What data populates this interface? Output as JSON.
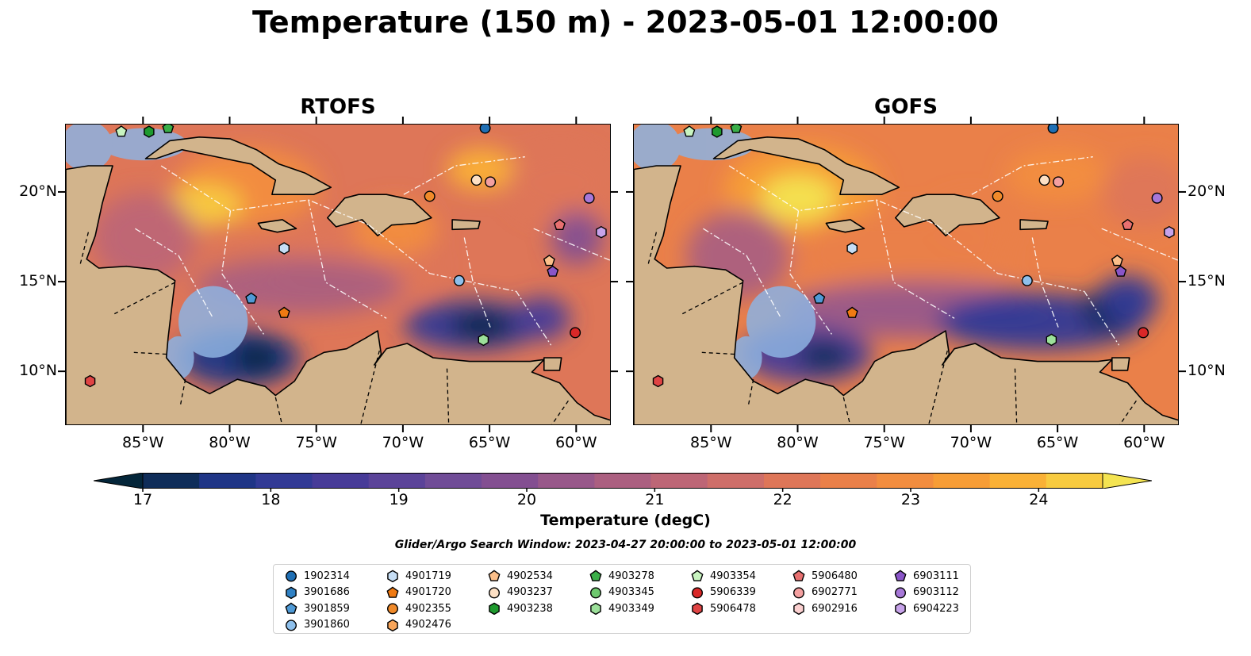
{
  "title": "Temperature (150 m) - 2023-05-01 12:00:00",
  "panels": [
    {
      "title": "RTOFS"
    },
    {
      "title": "GOFS"
    }
  ],
  "lon_ticks": [
    "85°W",
    "80°W",
    "75°W",
    "70°W",
    "65°W",
    "60°W"
  ],
  "lat_ticks": [
    "20°N",
    "15°N",
    "10°N"
  ],
  "map_extent": {
    "lon": [
      -89.5,
      -58.0
    ],
    "lat": [
      7.0,
      23.8
    ]
  },
  "colorbar": {
    "label": "Temperature (degC)",
    "ticks": [
      "17",
      "18",
      "19",
      "20",
      "21",
      "22",
      "23",
      "24"
    ],
    "min": 17,
    "max": 24.5,
    "step": 0.5,
    "colors": [
      "#04263a",
      "#0f2d59",
      "#1f3586",
      "#323a95",
      "#473b98",
      "#5b4399",
      "#704c97",
      "#834f91",
      "#98588a",
      "#ab5f80",
      "#bd6676",
      "#ce6e69",
      "#de7658",
      "#ea8049",
      "#f28d3f",
      "#f79d36",
      "#fab136",
      "#f8cb40",
      "#f4e452"
    ]
  },
  "search_window": "Glider/Argo Search Window: 2023-04-27 20:00:00 to 2023-05-01 12:00:00",
  "legend": [
    {
      "id": "1902314",
      "marker": "circle",
      "color": "#1f6fb4"
    },
    {
      "id": "3901686",
      "marker": "hexagon",
      "color": "#2f81c4"
    },
    {
      "id": "3901859",
      "marker": "pentagon",
      "color": "#4f9ad6"
    },
    {
      "id": "3901860",
      "marker": "circle",
      "color": "#8ec0ec"
    },
    {
      "id": "4901719",
      "marker": "hexagon",
      "color": "#c6def5"
    },
    {
      "id": "4901720",
      "marker": "pentagon",
      "color": "#f07a12"
    },
    {
      "id": "4902355",
      "marker": "circle",
      "color": "#f08a2a"
    },
    {
      "id": "4902476",
      "marker": "hexagon",
      "color": "#f8a55a"
    },
    {
      "id": "4902534",
      "marker": "pentagon",
      "color": "#fbbf8a"
    },
    {
      "id": "4903237",
      "marker": "circle",
      "color": "#fde0c4"
    },
    {
      "id": "4903238",
      "marker": "hexagon",
      "color": "#1e9a2e"
    },
    {
      "id": "4903278",
      "marker": "pentagon",
      "color": "#3aae48"
    },
    {
      "id": "4903345",
      "marker": "circle",
      "color": "#6ec86e"
    },
    {
      "id": "4903349",
      "marker": "hexagon",
      "color": "#9ce09a"
    },
    {
      "id": "4903354",
      "marker": "pentagon",
      "color": "#c8f4c0"
    },
    {
      "id": "5906339",
      "marker": "circle",
      "color": "#d92828"
    },
    {
      "id": "5906478",
      "marker": "hexagon",
      "color": "#e04444"
    },
    {
      "id": "5906480",
      "marker": "pentagon",
      "color": "#e87070"
    },
    {
      "id": "6902771",
      "marker": "circle",
      "color": "#f4a0a0"
    },
    {
      "id": "6902916",
      "marker": "hexagon",
      "color": "#fbd0d0"
    },
    {
      "id": "6903111",
      "marker": "pentagon",
      "color": "#8a55c8"
    },
    {
      "id": "6903112",
      "marker": "circle",
      "color": "#a778d8"
    },
    {
      "id": "6904223",
      "marker": "hexagon",
      "color": "#c7a3ea"
    }
  ]
}
